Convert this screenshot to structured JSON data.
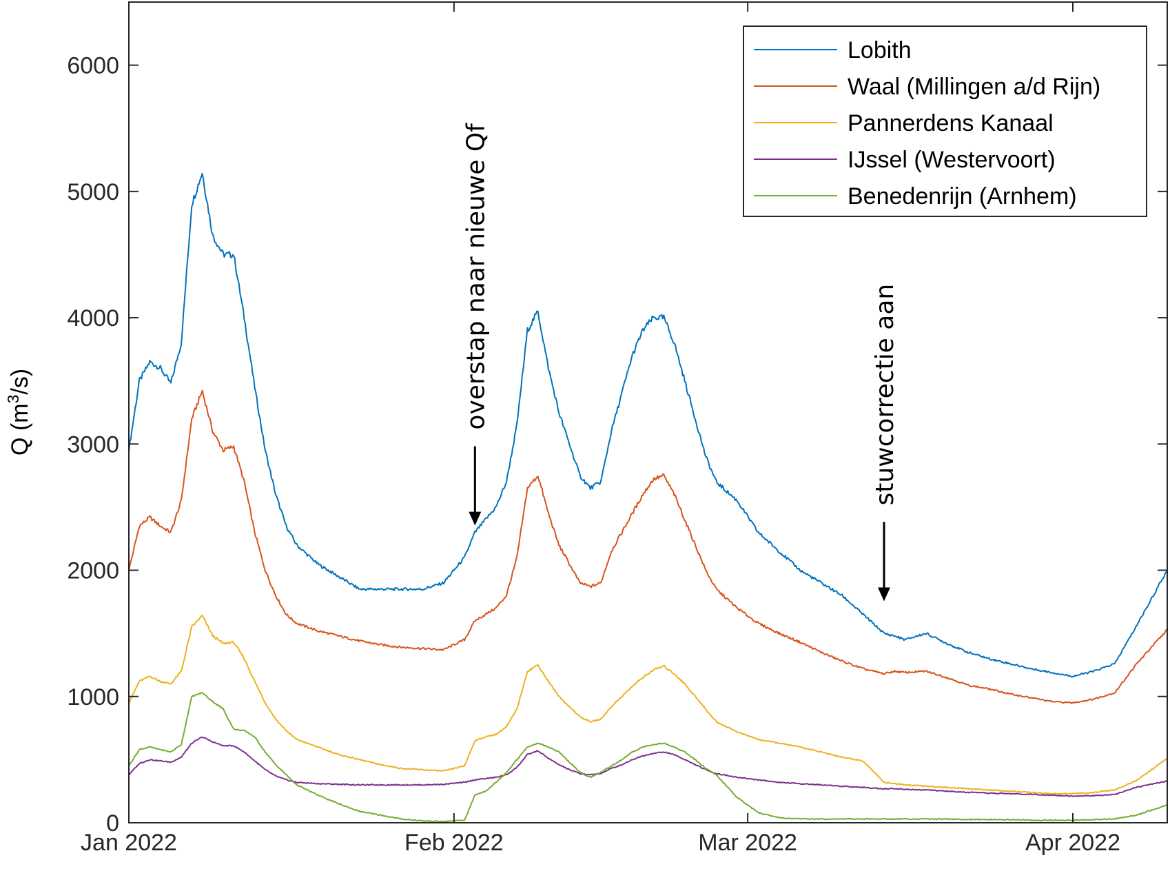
{
  "chart_data": {
    "type": "line",
    "title": "",
    "xlabel": "",
    "ylabel": "Q (m³/s)",
    "ylabel_parts": {
      "main": "Q (m",
      "sup": "3",
      "rest": "/s)"
    },
    "xlim": [
      "2022-01-01",
      "2022-04-10"
    ],
    "ylim": [
      0,
      6500
    ],
    "xticks": [
      {
        "date": "2022-01-01",
        "label": "Jan 2022"
      },
      {
        "date": "2022-02-01",
        "label": "Feb 2022"
      },
      {
        "date": "2022-03-01",
        "label": "Mar 2022"
      },
      {
        "date": "2022-04-01",
        "label": "Apr 2022"
      }
    ],
    "yticks": [
      0,
      1000,
      2000,
      3000,
      4000,
      5000,
      6000
    ],
    "grid": false,
    "legend_position": "top-right",
    "series": [
      {
        "name": "Lobith",
        "color": "#0072BD",
        "x": [
          "2022-01-01",
          "2022-01-02",
          "2022-01-03",
          "2022-01-04",
          "2022-01-05",
          "2022-01-06",
          "2022-01-07",
          "2022-01-08",
          "2022-01-09",
          "2022-01-10",
          "2022-01-11",
          "2022-01-12",
          "2022-01-13",
          "2022-01-14",
          "2022-01-15",
          "2022-01-16",
          "2022-01-17",
          "2022-01-19",
          "2022-01-21",
          "2022-01-23",
          "2022-01-25",
          "2022-01-27",
          "2022-01-29",
          "2022-01-31",
          "2022-02-02",
          "2022-02-03",
          "2022-02-04",
          "2022-02-05",
          "2022-02-06",
          "2022-02-07",
          "2022-02-08",
          "2022-02-09",
          "2022-02-10",
          "2022-02-11",
          "2022-02-12",
          "2022-02-13",
          "2022-02-14",
          "2022-02-15",
          "2022-02-16",
          "2022-02-17",
          "2022-02-18",
          "2022-02-19",
          "2022-02-20",
          "2022-02-21",
          "2022-02-22",
          "2022-02-23",
          "2022-02-24",
          "2022-02-25",
          "2022-02-26",
          "2022-02-28",
          "2022-03-02",
          "2022-03-04",
          "2022-03-06",
          "2022-03-08",
          "2022-03-10",
          "2022-03-12",
          "2022-03-14",
          "2022-03-15",
          "2022-03-16",
          "2022-03-18",
          "2022-03-20",
          "2022-03-22",
          "2022-03-24",
          "2022-03-26",
          "2022-03-28",
          "2022-03-30",
          "2022-04-01",
          "2022-04-03",
          "2022-04-05",
          "2022-04-07",
          "2022-04-10"
        ],
        "values": [
          2950,
          3500,
          3650,
          3600,
          3480,
          3800,
          4900,
          5150,
          4650,
          4500,
          4500,
          4000,
          3450,
          2950,
          2600,
          2350,
          2200,
          2050,
          1950,
          1850,
          1850,
          1850,
          1850,
          1900,
          2100,
          2300,
          2400,
          2500,
          2700,
          3150,
          3900,
          4050,
          3600,
          3250,
          3000,
          2750,
          2650,
          2700,
          3100,
          3400,
          3700,
          3900,
          4000,
          4000,
          3800,
          3500,
          3200,
          2900,
          2700,
          2550,
          2300,
          2150,
          2000,
          1900,
          1800,
          1650,
          1500,
          1480,
          1450,
          1500,
          1420,
          1350,
          1300,
          1260,
          1220,
          1190,
          1160,
          1200,
          1260,
          1550,
          2000
        ]
      },
      {
        "name": "Waal (Millingen a/d Rijn)",
        "color": "#D95319",
        "x": [
          "2022-01-01",
          "2022-01-02",
          "2022-01-03",
          "2022-01-04",
          "2022-01-05",
          "2022-01-06",
          "2022-01-07",
          "2022-01-08",
          "2022-01-09",
          "2022-01-10",
          "2022-01-11",
          "2022-01-12",
          "2022-01-13",
          "2022-01-14",
          "2022-01-15",
          "2022-01-16",
          "2022-01-17",
          "2022-01-19",
          "2022-01-21",
          "2022-01-23",
          "2022-01-25",
          "2022-01-27",
          "2022-01-29",
          "2022-01-31",
          "2022-02-02",
          "2022-02-03",
          "2022-02-04",
          "2022-02-05",
          "2022-02-06",
          "2022-02-07",
          "2022-02-08",
          "2022-02-09",
          "2022-02-10",
          "2022-02-11",
          "2022-02-12",
          "2022-02-13",
          "2022-02-14",
          "2022-02-15",
          "2022-02-16",
          "2022-02-17",
          "2022-02-18",
          "2022-02-19",
          "2022-02-20",
          "2022-02-21",
          "2022-02-22",
          "2022-02-23",
          "2022-02-24",
          "2022-02-25",
          "2022-02-26",
          "2022-02-28",
          "2022-03-02",
          "2022-03-04",
          "2022-03-06",
          "2022-03-08",
          "2022-03-10",
          "2022-03-12",
          "2022-03-14",
          "2022-03-15",
          "2022-03-16",
          "2022-03-18",
          "2022-03-20",
          "2022-03-22",
          "2022-03-24",
          "2022-03-26",
          "2022-03-28",
          "2022-03-30",
          "2022-04-01",
          "2022-04-03",
          "2022-04-05",
          "2022-04-07",
          "2022-04-10"
        ],
        "values": [
          2000,
          2350,
          2420,
          2350,
          2300,
          2550,
          3200,
          3420,
          3100,
          2950,
          2980,
          2700,
          2300,
          2000,
          1800,
          1650,
          1580,
          1520,
          1480,
          1440,
          1410,
          1390,
          1380,
          1370,
          1450,
          1600,
          1650,
          1700,
          1800,
          2100,
          2650,
          2750,
          2450,
          2200,
          2050,
          1900,
          1870,
          1900,
          2150,
          2300,
          2450,
          2600,
          2720,
          2750,
          2600,
          2400,
          2200,
          2000,
          1850,
          1700,
          1580,
          1500,
          1430,
          1350,
          1280,
          1220,
          1180,
          1200,
          1190,
          1200,
          1150,
          1090,
          1060,
          1020,
          990,
          960,
          950,
          980,
          1030,
          1250,
          1530
        ]
      },
      {
        "name": "Pannerdens Kanaal",
        "color": "#EDB120",
        "x": [
          "2022-01-01",
          "2022-01-02",
          "2022-01-03",
          "2022-01-04",
          "2022-01-05",
          "2022-01-06",
          "2022-01-07",
          "2022-01-08",
          "2022-01-09",
          "2022-01-10",
          "2022-01-11",
          "2022-01-12",
          "2022-01-13",
          "2022-01-14",
          "2022-01-15",
          "2022-01-16",
          "2022-01-17",
          "2022-01-19",
          "2022-01-21",
          "2022-01-23",
          "2022-01-25",
          "2022-01-27",
          "2022-01-29",
          "2022-01-31",
          "2022-02-02",
          "2022-02-03",
          "2022-02-04",
          "2022-02-05",
          "2022-02-06",
          "2022-02-07",
          "2022-02-08",
          "2022-02-09",
          "2022-02-10",
          "2022-02-11",
          "2022-02-12",
          "2022-02-13",
          "2022-02-14",
          "2022-02-15",
          "2022-02-16",
          "2022-02-17",
          "2022-02-18",
          "2022-02-19",
          "2022-02-20",
          "2022-02-21",
          "2022-02-22",
          "2022-02-23",
          "2022-02-24",
          "2022-02-25",
          "2022-02-26",
          "2022-02-28",
          "2022-03-02",
          "2022-03-04",
          "2022-03-06",
          "2022-03-08",
          "2022-03-10",
          "2022-03-12",
          "2022-03-14",
          "2022-03-15",
          "2022-03-16",
          "2022-03-18",
          "2022-03-20",
          "2022-03-22",
          "2022-03-24",
          "2022-03-26",
          "2022-03-28",
          "2022-03-30",
          "2022-04-01",
          "2022-04-03",
          "2022-04-05",
          "2022-04-07",
          "2022-04-10"
        ],
        "values": [
          950,
          1120,
          1160,
          1120,
          1100,
          1200,
          1550,
          1640,
          1480,
          1420,
          1430,
          1300,
          1120,
          950,
          820,
          730,
          660,
          600,
          540,
          500,
          460,
          430,
          420,
          410,
          450,
          650,
          680,
          700,
          760,
          900,
          1200,
          1250,
          1120,
          1000,
          920,
          840,
          800,
          820,
          920,
          1000,
          1080,
          1150,
          1210,
          1240,
          1180,
          1100,
          1000,
          900,
          800,
          720,
          660,
          630,
          600,
          560,
          520,
          490,
          320,
          310,
          300,
          290,
          280,
          270,
          260,
          250,
          240,
          230,
          230,
          240,
          260,
          330,
          510
        ]
      },
      {
        "name": "IJssel (Westervoort)",
        "color": "#7E2F8E",
        "x": [
          "2022-01-01",
          "2022-01-02",
          "2022-01-03",
          "2022-01-04",
          "2022-01-05",
          "2022-01-06",
          "2022-01-07",
          "2022-01-08",
          "2022-01-09",
          "2022-01-10",
          "2022-01-11",
          "2022-01-12",
          "2022-01-13",
          "2022-01-14",
          "2022-01-15",
          "2022-01-16",
          "2022-01-17",
          "2022-01-19",
          "2022-01-21",
          "2022-01-23",
          "2022-01-25",
          "2022-01-27",
          "2022-01-29",
          "2022-01-31",
          "2022-02-02",
          "2022-02-03",
          "2022-02-04",
          "2022-02-05",
          "2022-02-06",
          "2022-02-07",
          "2022-02-08",
          "2022-02-09",
          "2022-02-10",
          "2022-02-11",
          "2022-02-12",
          "2022-02-13",
          "2022-02-14",
          "2022-02-15",
          "2022-02-16",
          "2022-02-17",
          "2022-02-18",
          "2022-02-19",
          "2022-02-20",
          "2022-02-21",
          "2022-02-22",
          "2022-02-23",
          "2022-02-24",
          "2022-02-25",
          "2022-02-26",
          "2022-02-28",
          "2022-03-02",
          "2022-03-04",
          "2022-03-06",
          "2022-03-08",
          "2022-03-10",
          "2022-03-12",
          "2022-03-14",
          "2022-03-15",
          "2022-03-16",
          "2022-03-18",
          "2022-03-20",
          "2022-03-22",
          "2022-03-24",
          "2022-03-26",
          "2022-03-28",
          "2022-03-30",
          "2022-04-01",
          "2022-04-03",
          "2022-04-05",
          "2022-04-07",
          "2022-04-10"
        ],
        "values": [
          380,
          470,
          500,
          490,
          480,
          520,
          630,
          680,
          640,
          610,
          610,
          560,
          490,
          420,
          370,
          340,
          320,
          310,
          305,
          300,
          300,
          300,
          300,
          305,
          320,
          340,
          350,
          360,
          380,
          440,
          540,
          570,
          510,
          460,
          420,
          390,
          380,
          390,
          430,
          460,
          500,
          530,
          550,
          560,
          540,
          500,
          460,
          420,
          390,
          360,
          340,
          320,
          310,
          300,
          290,
          280,
          270,
          270,
          265,
          260,
          250,
          240,
          235,
          230,
          225,
          220,
          210,
          215,
          225,
          280,
          330
        ]
      },
      {
        "name": "Benedenrijn (Arnhem)",
        "color": "#77AC30",
        "x": [
          "2022-01-01",
          "2022-01-02",
          "2022-01-03",
          "2022-01-04",
          "2022-01-05",
          "2022-01-06",
          "2022-01-07",
          "2022-01-08",
          "2022-01-09",
          "2022-01-10",
          "2022-01-11",
          "2022-01-12",
          "2022-01-13",
          "2022-01-14",
          "2022-01-15",
          "2022-01-16",
          "2022-01-17",
          "2022-01-19",
          "2022-01-21",
          "2022-01-23",
          "2022-01-25",
          "2022-01-27",
          "2022-01-29",
          "2022-01-31",
          "2022-02-02",
          "2022-02-03",
          "2022-02-04",
          "2022-02-05",
          "2022-02-06",
          "2022-02-07",
          "2022-02-08",
          "2022-02-09",
          "2022-02-10",
          "2022-02-11",
          "2022-02-12",
          "2022-02-13",
          "2022-02-14",
          "2022-02-15",
          "2022-02-16",
          "2022-02-17",
          "2022-02-18",
          "2022-02-19",
          "2022-02-20",
          "2022-02-21",
          "2022-02-22",
          "2022-02-23",
          "2022-02-24",
          "2022-02-25",
          "2022-02-26",
          "2022-02-28",
          "2022-03-02",
          "2022-03-04",
          "2022-03-06",
          "2022-03-08",
          "2022-03-10",
          "2022-03-12",
          "2022-03-14",
          "2022-03-15",
          "2022-03-16",
          "2022-03-18",
          "2022-03-20",
          "2022-03-22",
          "2022-03-24",
          "2022-03-26",
          "2022-03-28",
          "2022-03-30",
          "2022-04-01",
          "2022-04-03",
          "2022-04-05",
          "2022-04-07",
          "2022-04-10"
        ],
        "values": [
          450,
          580,
          600,
          580,
          560,
          620,
          1000,
          1030,
          960,
          900,
          740,
          730,
          680,
          560,
          460,
          380,
          300,
          220,
          150,
          90,
          60,
          30,
          15,
          10,
          20,
          220,
          250,
          320,
          400,
          500,
          600,
          630,
          600,
          560,
          480,
          400,
          360,
          400,
          450,
          500,
          560,
          600,
          620,
          630,
          600,
          560,
          500,
          430,
          380,
          200,
          80,
          40,
          30,
          30,
          30,
          30,
          30,
          30,
          30,
          30,
          30,
          25,
          25,
          25,
          20,
          20,
          20,
          25,
          30,
          60,
          140
        ]
      }
    ],
    "annotations": [
      {
        "text": "overstap naar nieuwe Qf",
        "x": "2022-02-03",
        "y": 2300,
        "orientation": "vertical",
        "arrow": "down"
      },
      {
        "text": "stuwcorrectie aan",
        "x": "2022-03-14",
        "y": 1700,
        "orientation": "vertical",
        "arrow": "down"
      }
    ]
  }
}
